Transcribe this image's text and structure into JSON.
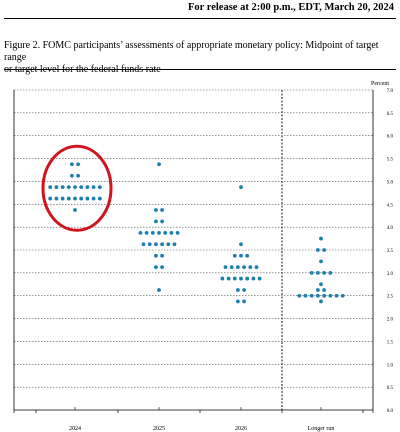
{
  "header": {
    "release_line": "For release at 2:00 p.m., EDT, March 20, 2024"
  },
  "figure": {
    "title_line1": "Figure 2.  FOMC participants’ assessments of appropriate monetary policy:  Midpoint of target range",
    "title_line2": "or target level for the federal funds rate"
  },
  "chart_data": {
    "type": "scatter",
    "title": "",
    "ylabel": "Percent",
    "xlabel": "",
    "ylim": [
      0.0,
      7.0
    ],
    "yticks": [
      0.0,
      0.5,
      1.0,
      1.5,
      2.0,
      2.5,
      3.0,
      3.5,
      4.0,
      4.5,
      5.0,
      5.5,
      6.0,
      6.5,
      7.0
    ],
    "ytick_labels": [
      "0.0",
      "0.5",
      "1.0",
      "1.5",
      "2.0",
      "2.5",
      "3.0",
      "3.5",
      "4.0",
      "4.5",
      "5.0",
      "5.5",
      "6.0",
      "6.5",
      "7.0"
    ],
    "grid": true,
    "categories": [
      "2024",
      "2025",
      "2026",
      "Longer run"
    ],
    "dot_color": "#1c7fae",
    "highlight": {
      "category": "2024",
      "shape": "ellipse",
      "color": "#d0141e"
    },
    "series": [
      {
        "category": "2024",
        "points": [
          {
            "y": 5.375,
            "count": 2
          },
          {
            "y": 5.125,
            "count": 2
          },
          {
            "y": 4.875,
            "count": 9
          },
          {
            "y": 4.625,
            "count": 9
          },
          {
            "y": 4.375,
            "count": 1
          }
        ]
      },
      {
        "category": "2025",
        "points": [
          {
            "y": 5.375,
            "count": 1
          },
          {
            "y": 4.375,
            "count": 2
          },
          {
            "y": 4.125,
            "count": 2
          },
          {
            "y": 3.875,
            "count": 7
          },
          {
            "y": 3.625,
            "count": 6
          },
          {
            "y": 3.375,
            "count": 2
          },
          {
            "y": 3.125,
            "count": 2
          },
          {
            "y": 2.625,
            "count": 1
          }
        ]
      },
      {
        "category": "2026",
        "points": [
          {
            "y": 4.875,
            "count": 1
          },
          {
            "y": 3.625,
            "count": 1
          },
          {
            "y": 3.375,
            "count": 3
          },
          {
            "y": 3.125,
            "count": 6
          },
          {
            "y": 2.875,
            "count": 7
          },
          {
            "y": 2.625,
            "count": 2
          },
          {
            "y": 2.375,
            "count": 2
          }
        ]
      },
      {
        "category": "Longer run",
        "points": [
          {
            "y": 3.75,
            "count": 1
          },
          {
            "y": 3.5,
            "count": 2
          },
          {
            "y": 3.25,
            "count": 1
          },
          {
            "y": 3.0,
            "count": 4
          },
          {
            "y": 2.75,
            "count": 1
          },
          {
            "y": 2.625,
            "count": 2
          },
          {
            "y": 2.5,
            "count": 8
          },
          {
            "y": 2.375,
            "count": 1
          }
        ]
      }
    ]
  }
}
